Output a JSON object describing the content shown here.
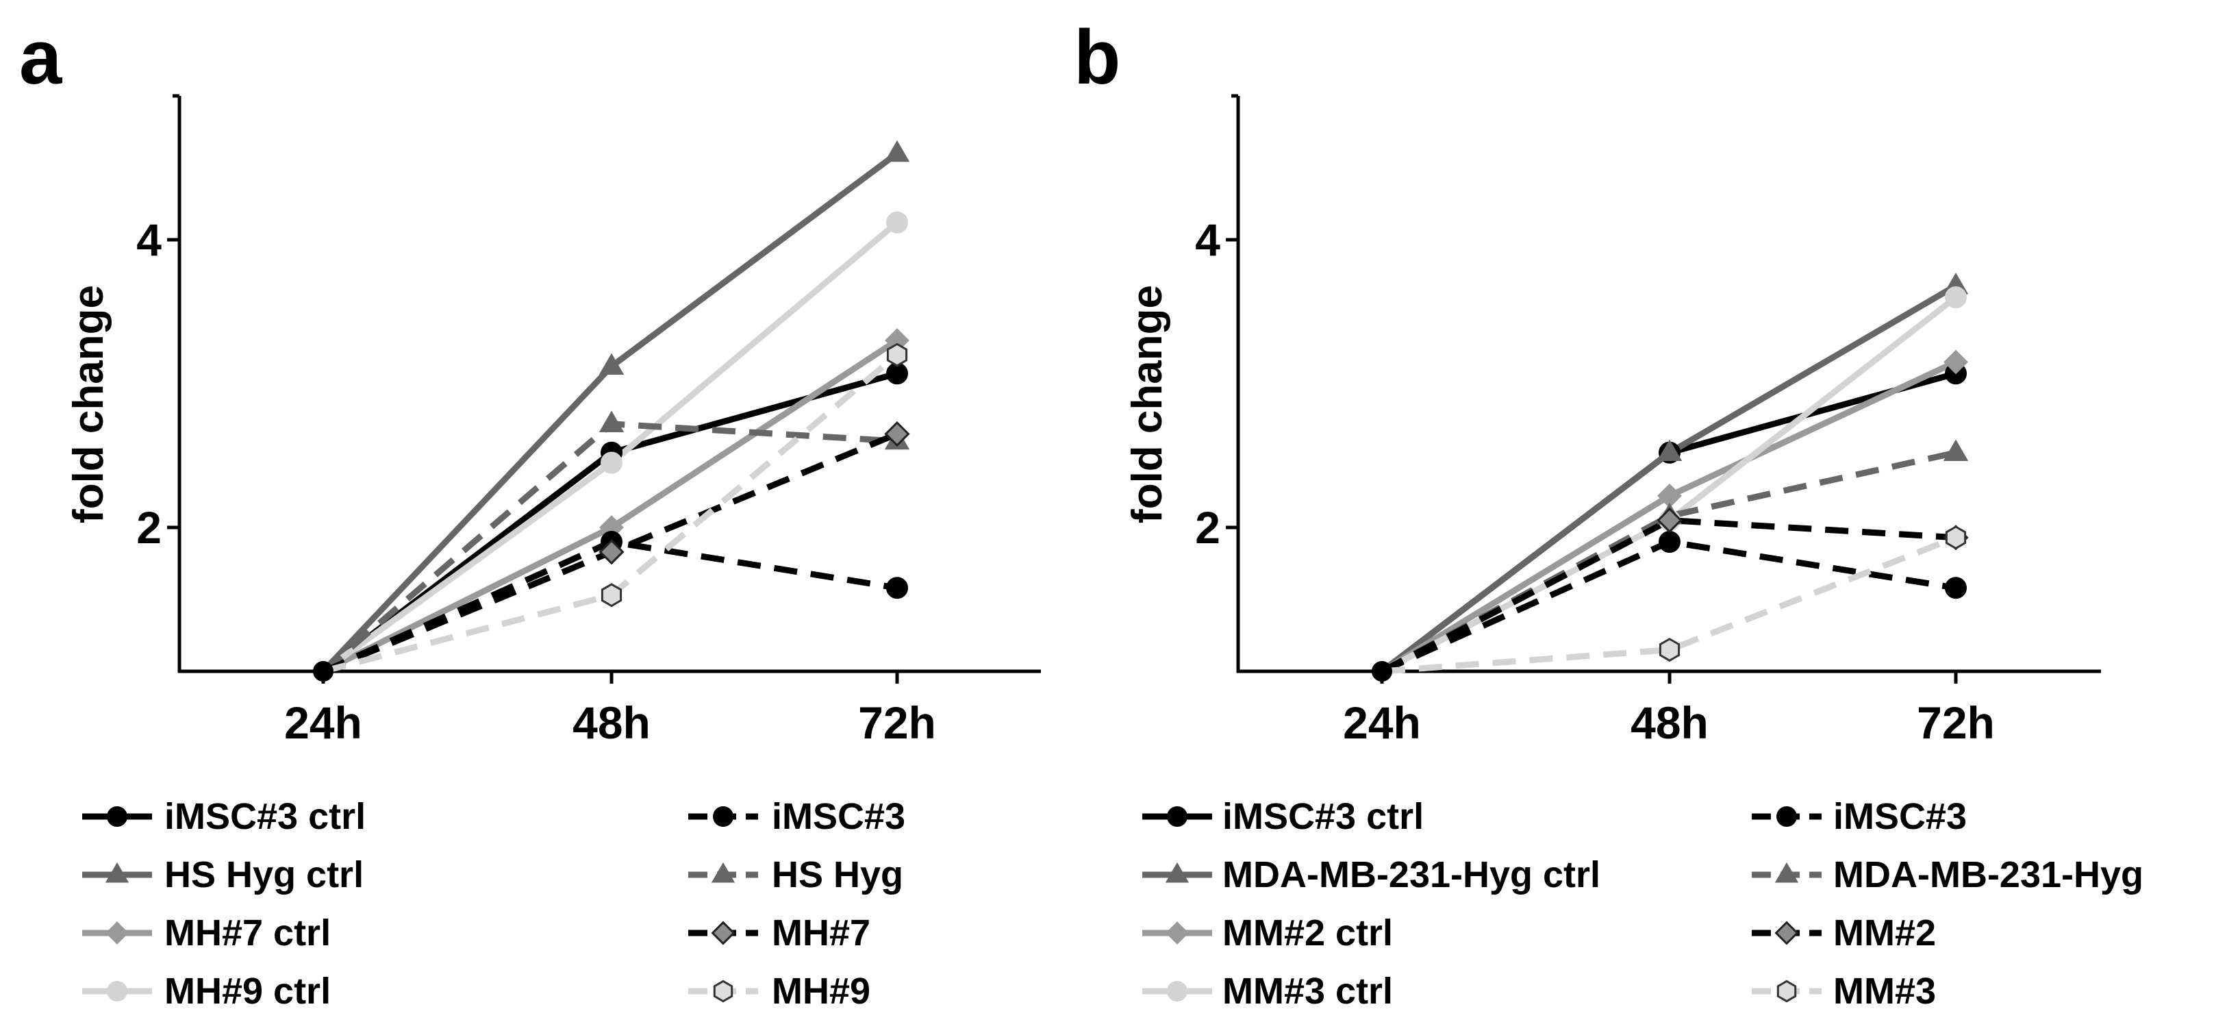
{
  "colors": {
    "black": "#000000",
    "dark_gray": "#666666",
    "mid_gray": "#999999",
    "light_gray": "#d3d3d3"
  },
  "chart_data": [
    {
      "type": "line",
      "panel_label": "a",
      "categories": [
        "24h",
        "48h",
        "72h"
      ],
      "xlabel": "",
      "ylabel": "fold change",
      "ylim": [
        1,
        5
      ],
      "yticks": [
        2,
        4
      ],
      "series": [
        {
          "name": "iMSC#3 ctrl",
          "values": [
            1.0,
            2.52,
            3.07
          ],
          "color": "#000000",
          "dashed": false,
          "marker": "circle"
        },
        {
          "name": "HS Hyg ctrl",
          "values": [
            1.0,
            3.12,
            4.6
          ],
          "color": "#666666",
          "dashed": false,
          "marker": "triangle"
        },
        {
          "name": "MH#7 ctrl",
          "values": [
            1.0,
            2.0,
            3.3
          ],
          "color": "#999999",
          "dashed": false,
          "marker": "diamond"
        },
        {
          "name": "MH#9 ctrl",
          "values": [
            1.0,
            2.45,
            4.12
          ],
          "color": "#d3d3d3",
          "dashed": false,
          "marker": "circle"
        },
        {
          "name": "iMSC#3",
          "values": [
            1.0,
            1.9,
            1.58
          ],
          "color": "#000000",
          "dashed": true,
          "marker": "circle"
        },
        {
          "name": "HS Hyg",
          "values": [
            1.0,
            2.72,
            2.6
          ],
          "color": "#666666",
          "dashed": true,
          "marker": "triangle"
        },
        {
          "name": "MH#7",
          "values": [
            1.0,
            1.83,
            2.65
          ],
          "color": "#000000",
          "dashed": true,
          "marker": "diamond-filled"
        },
        {
          "name": "MH#9",
          "values": [
            1.0,
            1.53,
            3.2
          ],
          "color": "#d3d3d3",
          "dashed": true,
          "marker": "hexagon"
        }
      ]
    },
    {
      "type": "line",
      "panel_label": "b",
      "categories": [
        "24h",
        "48h",
        "72h"
      ],
      "xlabel": "",
      "ylabel": "fold change",
      "ylim": [
        1,
        5
      ],
      "yticks": [
        2,
        4
      ],
      "series": [
        {
          "name": "iMSC#3 ctrl",
          "values": [
            1.0,
            2.52,
            3.07
          ],
          "color": "#000000",
          "dashed": false,
          "marker": "circle"
        },
        {
          "name": "MDA-MB-231-Hyg ctrl",
          "values": [
            1.0,
            2.52,
            3.68
          ],
          "color": "#666666",
          "dashed": false,
          "marker": "triangle"
        },
        {
          "name": "MM#2 ctrl",
          "values": [
            1.0,
            2.22,
            3.15
          ],
          "color": "#999999",
          "dashed": false,
          "marker": "diamond"
        },
        {
          "name": "MM#3 ctrl",
          "values": [
            1.0,
            2.05,
            3.6
          ],
          "color": "#d3d3d3",
          "dashed": false,
          "marker": "circle"
        },
        {
          "name": "iMSC#3",
          "values": [
            1.0,
            1.9,
            1.58
          ],
          "color": "#000000",
          "dashed": true,
          "marker": "circle"
        },
        {
          "name": "MDA-MB-231-Hyg",
          "values": [
            1.0,
            2.08,
            2.52
          ],
          "color": "#666666",
          "dashed": true,
          "marker": "triangle"
        },
        {
          "name": "MM#2",
          "values": [
            1.0,
            2.05,
            1.93
          ],
          "color": "#000000",
          "dashed": true,
          "marker": "diamond-filled"
        },
        {
          "name": "MM#3",
          "values": [
            1.0,
            1.15,
            1.93
          ],
          "color": "#d3d3d3",
          "dashed": true,
          "marker": "hexagon"
        }
      ]
    }
  ]
}
